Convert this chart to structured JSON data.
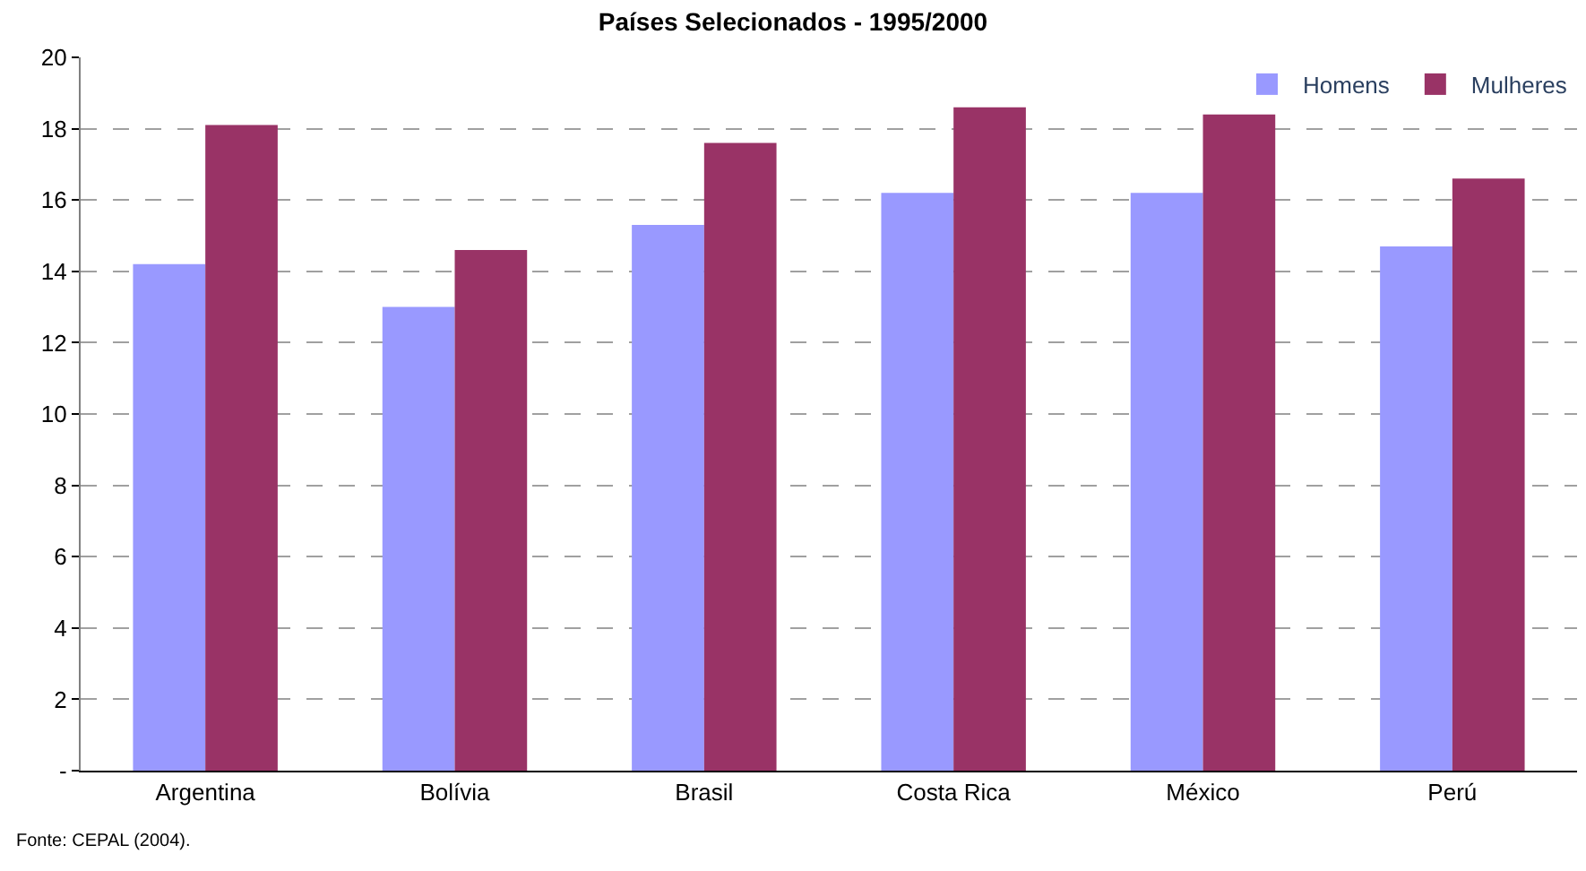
{
  "chart_data": {
    "type": "bar",
    "title": "Países Selecionados - 1995/2000",
    "categories": [
      "Argentina",
      "Bolívia",
      "Brasil",
      "Costa Rica",
      "México",
      "Perú"
    ],
    "series": [
      {
        "name": "Homens",
        "color": "#9999ff",
        "values": [
          14.2,
          13.0,
          15.3,
          16.2,
          16.2,
          14.7
        ]
      },
      {
        "name": "Mulheres",
        "color": "#993366",
        "values": [
          18.1,
          14.6,
          17.6,
          18.6,
          18.4,
          16.6
        ]
      }
    ],
    "ylim": [
      0,
      20
    ],
    "yticks": [
      {
        "value": 0,
        "label": "-"
      },
      2,
      4,
      6,
      8,
      10,
      12,
      14,
      16,
      18,
      20
    ],
    "grid": "y",
    "legend": "top right",
    "annotations": [
      "Fonte: CEPAL (2004)."
    ]
  }
}
